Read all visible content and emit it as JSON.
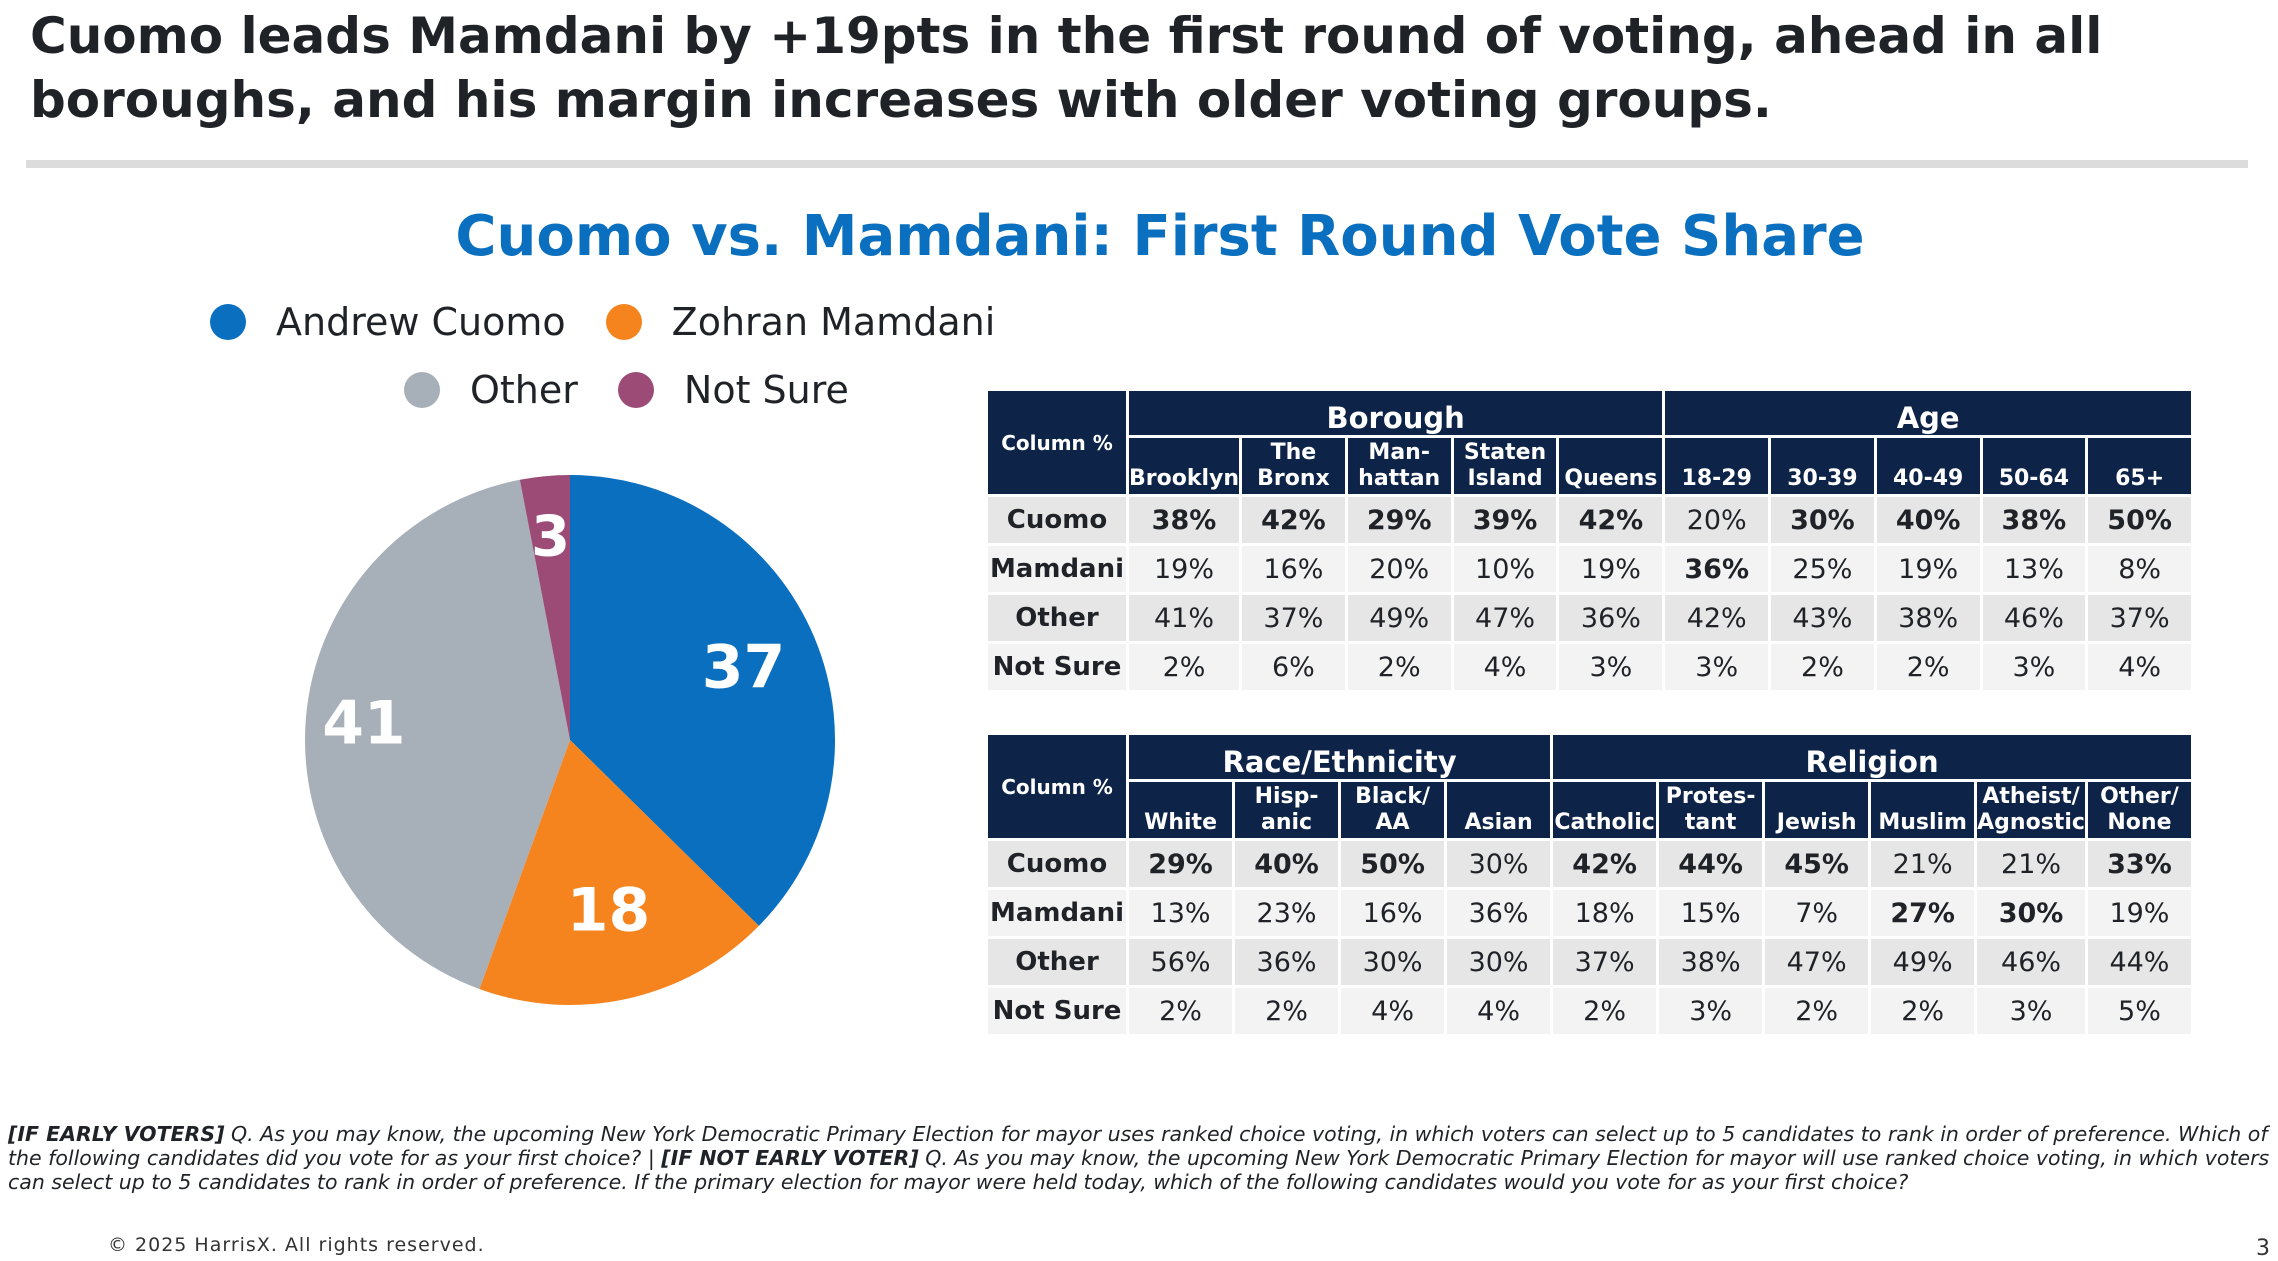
{
  "headline": "Cuomo leads Mamdani by +19pts in the first round of voting, ahead in all boroughs, and his margin increases with older voting groups.",
  "chart_data": {
    "type": "pie",
    "title": "Cuomo vs. Mamdani: First Round Vote Share",
    "slices": [
      {
        "name": "Andrew Cuomo",
        "value": 37,
        "label": "37",
        "color": "#0a6fbf"
      },
      {
        "name": "Zohran Mamdani",
        "value": 18,
        "label": "18",
        "color": "#f5841f"
      },
      {
        "name": "Other",
        "value": 41,
        "label": "41",
        "color": "#a7afb8"
      },
      {
        "name": "Not Sure",
        "value": 3,
        "label": "3",
        "color": "#9c4b77"
      }
    ],
    "legend_rows": [
      [
        "Andrew Cuomo",
        "Zohran Mamdani"
      ],
      [
        "Other",
        "Not Sure"
      ]
    ]
  },
  "table1": {
    "corner": "Column %",
    "groups": [
      {
        "label": "Borough",
        "span": 5
      },
      {
        "label": "Age",
        "span": 5
      }
    ],
    "columns": [
      "Brooklyn",
      "The Bronx",
      "Man-hattan",
      "Staten Island",
      "Queens",
      "18-29",
      "30-39",
      "40-49",
      "50-64",
      "65+"
    ],
    "rows": [
      {
        "label": "Cuomo",
        "values": [
          "38%",
          "42%",
          "29%",
          "39%",
          "42%",
          "20%",
          "30%",
          "40%",
          "38%",
          "50%"
        ],
        "bold": [
          true,
          true,
          true,
          true,
          true,
          false,
          true,
          true,
          true,
          true
        ]
      },
      {
        "label": "Mamdani",
        "values": [
          "19%",
          "16%",
          "20%",
          "10%",
          "19%",
          "36%",
          "25%",
          "19%",
          "13%",
          "8%"
        ],
        "bold": [
          false,
          false,
          false,
          false,
          false,
          true,
          false,
          false,
          false,
          false
        ]
      },
      {
        "label": "Other",
        "values": [
          "41%",
          "37%",
          "49%",
          "47%",
          "36%",
          "42%",
          "43%",
          "38%",
          "46%",
          "37%"
        ],
        "bold": [
          false,
          false,
          false,
          false,
          false,
          false,
          false,
          false,
          false,
          false
        ]
      },
      {
        "label": "Not Sure",
        "values": [
          "2%",
          "6%",
          "2%",
          "4%",
          "3%",
          "3%",
          "2%",
          "2%",
          "3%",
          "4%"
        ],
        "bold": [
          false,
          false,
          false,
          false,
          false,
          false,
          false,
          false,
          false,
          false
        ]
      }
    ]
  },
  "table2": {
    "corner": "Column %",
    "groups": [
      {
        "label": "Race/Ethnicity",
        "span": 4
      },
      {
        "label": "Religion",
        "span": 6
      }
    ],
    "columns": [
      "White",
      "Hisp-anic",
      "Black/ AA",
      "Asian",
      "Catholic",
      "Protes-tant",
      "Jewish",
      "Muslim",
      "Atheist/ Agnostic",
      "Other/ None"
    ],
    "rows": [
      {
        "label": "Cuomo",
        "values": [
          "29%",
          "40%",
          "50%",
          "30%",
          "42%",
          "44%",
          "45%",
          "21%",
          "21%",
          "33%"
        ],
        "bold": [
          true,
          true,
          true,
          false,
          true,
          true,
          true,
          false,
          false,
          true
        ]
      },
      {
        "label": "Mamdani",
        "values": [
          "13%",
          "23%",
          "16%",
          "36%",
          "18%",
          "15%",
          "7%",
          "27%",
          "30%",
          "19%"
        ],
        "bold": [
          false,
          false,
          false,
          false,
          false,
          false,
          false,
          true,
          true,
          false
        ]
      },
      {
        "label": "Other",
        "values": [
          "56%",
          "36%",
          "30%",
          "30%",
          "37%",
          "38%",
          "47%",
          "49%",
          "46%",
          "44%"
        ],
        "bold": [
          false,
          false,
          false,
          false,
          false,
          false,
          false,
          false,
          false,
          false
        ]
      },
      {
        "label": "Not Sure",
        "values": [
          "2%",
          "2%",
          "4%",
          "4%",
          "2%",
          "3%",
          "2%",
          "2%",
          "3%",
          "5%"
        ],
        "bold": [
          false,
          false,
          false,
          false,
          false,
          false,
          false,
          false,
          false,
          false
        ]
      }
    ]
  },
  "footnote": {
    "tag1": "[IF EARLY VOTERS]",
    "text1": " Q. As you may know, the upcoming New York Democratic Primary Election for mayor uses ranked choice voting, in which voters can select up to 5 candidates to rank in order of preference. Which of the following candidates did you vote for as your first choice? | ",
    "tag2": "[IF NOT EARLY VOTER]",
    "text2": " Q. As you may know, the upcoming New York Democratic Primary Election for mayor will use ranked choice voting, in which voters can select up to 5 candidates to rank in order of preference. If the primary election for mayor were held today, which of the following candidates would you vote for as your first choice?"
  },
  "copyright": "© 2025 HarrisX. All rights reserved.",
  "page_number": "3"
}
